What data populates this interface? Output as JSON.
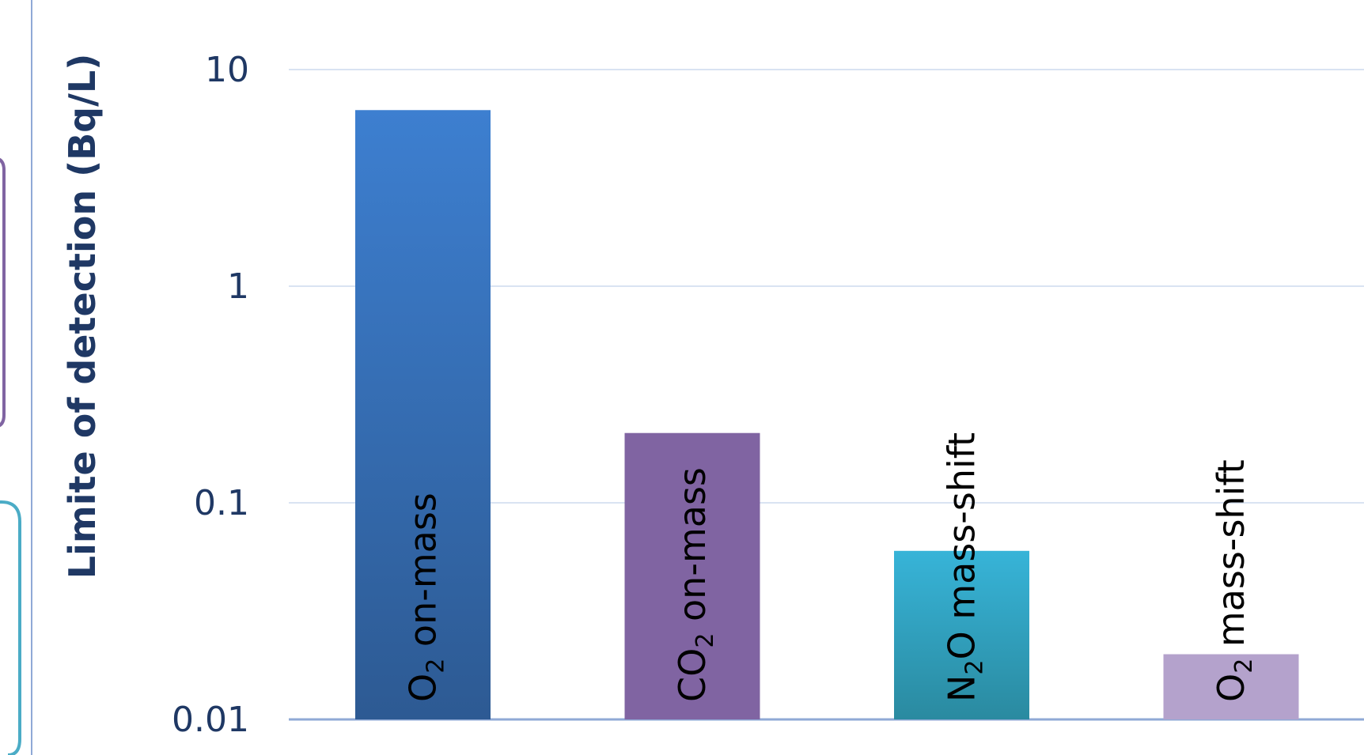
{
  "chart_data": {
    "type": "bar",
    "scale": "log",
    "ylabel": "Limite of detection (Bq/L)",
    "ylim": [
      0.01,
      10
    ],
    "yticks": [
      "10",
      "1",
      "0.1",
      "0.01"
    ],
    "grid": true,
    "categories": [
      {
        "pre": "O",
        "sub": "2",
        "post": " on-mass"
      },
      {
        "pre": "CO",
        "sub": "2",
        "post": " on-mass"
      },
      {
        "pre": "N",
        "sub": "2",
        "post": "O mass-shift"
      },
      {
        "pre": "O",
        "sub": "2",
        "post": " mass-shift"
      }
    ],
    "values": [
      6.5,
      0.21,
      0.06,
      0.02
    ],
    "colors": [
      [
        "#3d7fd0",
        "#2d5a93"
      ],
      [
        "#8064a2",
        "#8064a2"
      ],
      [
        "#37b4d8",
        "#2a8aa0"
      ],
      [
        "#b4a2cc",
        "#b4a2cc"
      ]
    ]
  },
  "decor": {
    "axis_line_color": "#8fa9d6",
    "grid_color": "#d9e3f2",
    "frame_purple": "#8064a2",
    "frame_teal": "#4bacc6"
  }
}
